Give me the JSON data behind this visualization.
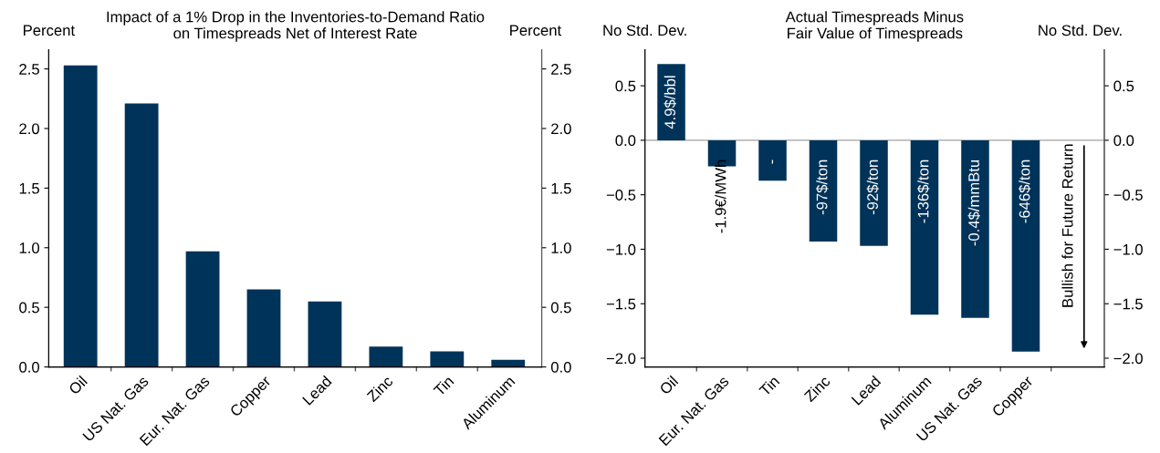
{
  "chart_data": [
    {
      "type": "bar",
      "title": "Impact of a 1% Drop in the Inventories-to-Demand Ratio\non Timespreads Net of Interest Rate",
      "ylabel": "Percent",
      "y2label": "Percent",
      "categories": [
        "Oil",
        "US Nat. Gas",
        "Eur. Nat. Gas",
        "Copper",
        "Lead",
        "Zinc",
        "Tin",
        "Aluminum"
      ],
      "values": [
        2.53,
        2.21,
        0.97,
        0.65,
        0.55,
        0.17,
        0.13,
        0.06
      ],
      "color": "#003359",
      "ylim": [
        0,
        2.66
      ],
      "yticks": [
        {
          "value": 0,
          "label": "0.0"
        },
        0.5,
        {
          "value": 1,
          "label": "1.0"
        },
        1.5,
        {
          "value": 2,
          "label": "2.0"
        },
        2.5
      ],
      "y2lim": [
        0,
        2.66
      ],
      "y2ticks": [
        {
          "value": 0,
          "label": "0.0"
        },
        0.5,
        {
          "value": 1,
          "label": "1.0"
        },
        1.5,
        {
          "value": 2,
          "label": "2.0"
        },
        2.5
      ],
      "grid": false,
      "legend": false
    },
    {
      "type": "bar",
      "title": "Actual Timespreads Minus\nFair Value of Timespreads",
      "ylabel": "No Std. Dev.",
      "y2label": "No Std. Dev.",
      "categories": [
        "Oil",
        "Eur. Nat. Gas",
        "Tin",
        "Zinc",
        "Lead",
        "Aluminum",
        "US Nat. Gas",
        "Copper",
        null
      ],
      "values": [
        0.7,
        -0.24,
        -0.37,
        -0.93,
        -0.97,
        -1.6,
        -1.63,
        -1.94,
        null
      ],
      "color": "#003359",
      "ylim": [
        -2.08,
        0.83
      ],
      "yticks": [
        {
          "value": -2,
          "label": "−2.0"
        },
        {
          "value": -1.5,
          "label": "−1.5"
        },
        {
          "value": -1,
          "label": "−1.0"
        },
        {
          "value": -0.5,
          "label": "−0.5"
        },
        {
          "value": 0,
          "label": "0.0"
        },
        0.5
      ],
      "y2lim": [
        -2.08,
        0.83
      ],
      "y2ticks": [
        {
          "value": -2,
          "label": "−2.0"
        },
        {
          "value": -1.5,
          "label": "−1.5"
        },
        {
          "value": -1,
          "label": "−1.0"
        },
        {
          "value": -0.5,
          "label": "−0.5"
        },
        {
          "value": 0,
          "label": "0.0"
        },
        0.5
      ],
      "ref_lines": [
        {
          "axis": "y",
          "value": 0,
          "color": "#a0a0a0"
        }
      ],
      "annotations": [
        "4.9$/bbl",
        "-1.9€/MWh",
        "-",
        "-97$/ton",
        "-92$/ton",
        "-136$/ton",
        "-0.4$/mmBtu",
        "-646$/ton",
        "Bullish for Future Return"
      ],
      "grid": false,
      "legend": false
    }
  ]
}
